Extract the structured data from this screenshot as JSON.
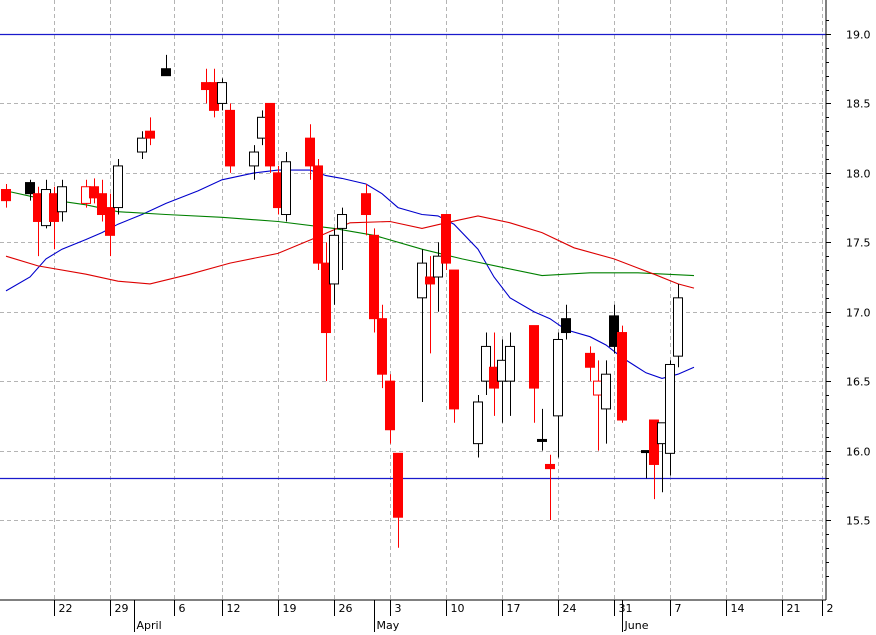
{
  "chart_data": {
    "type": "candlestick",
    "title": "",
    "ylim": [
      15.0,
      19.2
    ],
    "y_ticks": [
      15.5,
      16.0,
      16.5,
      17.0,
      17.5,
      18.0,
      18.5,
      19.0
    ],
    "y_tick_labels": [
      "15.5",
      "16.0",
      "16.5",
      "17.0",
      "17.5",
      "18.0",
      "18.5",
      "19.0"
    ],
    "x_start_date": "2012-03-16",
    "x_end_date": "2012-06-26",
    "x_tick_dates": [
      "2012-03-22",
      "2012-03-29",
      "2012-04-06",
      "2012-04-12",
      "2012-04-19",
      "2012-04-26",
      "2012-05-03",
      "2012-05-10",
      "2012-05-17",
      "2012-05-24",
      "2012-05-31",
      "2012-06-07",
      "2012-06-14",
      "2012-06-21",
      "2012-06-26"
    ],
    "x_tick_labels": [
      "22",
      "29",
      "6",
      "12",
      "19",
      "26",
      "3",
      "10",
      "17",
      "24",
      "31",
      "7",
      "14",
      "21",
      "2"
    ],
    "month_labels": [
      {
        "date": "2012-04-01",
        "label": "April"
      },
      {
        "date": "2012-05-01",
        "label": "May"
      },
      {
        "date": "2012-06-01",
        "label": "June"
      }
    ],
    "grid": true,
    "horizontal_lines": [
      {
        "value": 19.0,
        "color": "#1a1acc"
      },
      {
        "value": 15.8,
        "color": "#1a1acc"
      }
    ],
    "colors": {
      "up": "#ffffff",
      "down": "#ff0000",
      "outline": "#000000",
      "grid": "#b4b4b4"
    },
    "candles": [
      {
        "date": "2012-03-16",
        "open": 17.8,
        "high": 17.92,
        "low": 17.75,
        "close": 17.88,
        "color": "red"
      },
      {
        "date": "2012-03-19",
        "open": 17.85,
        "high": 17.95,
        "low": 17.8,
        "close": 17.93,
        "color": "black"
      },
      {
        "date": "2012-03-20",
        "open": 17.85,
        "high": 17.9,
        "low": 17.4,
        "close": 17.65,
        "color": "red"
      },
      {
        "date": "2012-03-21",
        "open": 17.62,
        "high": 17.95,
        "low": 17.6,
        "close": 17.88,
        "color": "white"
      },
      {
        "date": "2012-03-22",
        "open": 17.85,
        "high": 17.9,
        "low": 17.45,
        "close": 17.65,
        "color": "red"
      },
      {
        "date": "2012-03-23",
        "open": 17.72,
        "high": 17.95,
        "low": 17.65,
        "close": 17.9,
        "color": "white"
      },
      {
        "date": "2012-03-26",
        "open": 17.78,
        "high": 17.95,
        "low": 17.75,
        "close": 17.9,
        "color": "hollow-red"
      },
      {
        "date": "2012-03-27",
        "open": 17.9,
        "high": 17.96,
        "low": 17.78,
        "close": 17.82,
        "color": "red"
      },
      {
        "date": "2012-03-28",
        "open": 17.85,
        "high": 17.95,
        "low": 17.65,
        "close": 17.7,
        "color": "red"
      },
      {
        "date": "2012-03-29",
        "open": 17.75,
        "high": 17.85,
        "low": 17.4,
        "close": 17.55,
        "color": "red"
      },
      {
        "date": "2012-03-30",
        "open": 17.75,
        "high": 18.1,
        "low": 17.7,
        "close": 18.05,
        "color": "white"
      },
      {
        "date": "2012-04-02",
        "open": 18.15,
        "high": 18.3,
        "low": 18.1,
        "close": 18.25,
        "color": "white"
      },
      {
        "date": "2012-04-03",
        "open": 18.3,
        "high": 18.4,
        "low": 18.2,
        "close": 18.25,
        "color": "red"
      },
      {
        "date": "2012-04-05",
        "open": 18.7,
        "high": 18.85,
        "low": 18.7,
        "close": 18.75,
        "color": "black"
      },
      {
        "date": "2012-04-10",
        "open": 18.65,
        "high": 18.75,
        "low": 18.5,
        "close": 18.6,
        "color": "red"
      },
      {
        "date": "2012-04-11",
        "open": 18.65,
        "high": 18.75,
        "low": 18.4,
        "close": 18.45,
        "color": "red"
      },
      {
        "date": "2012-04-12",
        "open": 18.5,
        "high": 18.68,
        "low": 18.45,
        "close": 18.65,
        "color": "white"
      },
      {
        "date": "2012-04-13",
        "open": 18.45,
        "high": 18.5,
        "low": 18.0,
        "close": 18.05,
        "color": "red"
      },
      {
        "date": "2012-04-16",
        "open": 18.05,
        "high": 18.2,
        "low": 17.95,
        "close": 18.15,
        "color": "white"
      },
      {
        "date": "2012-04-17",
        "open": 18.25,
        "high": 18.45,
        "low": 18.2,
        "close": 18.4,
        "color": "white"
      },
      {
        "date": "2012-04-18",
        "open": 18.5,
        "high": 18.5,
        "low": 18.0,
        "close": 18.05,
        "color": "red"
      },
      {
        "date": "2012-04-19",
        "open": 18.0,
        "high": 18.05,
        "low": 17.7,
        "close": 17.75,
        "color": "red"
      },
      {
        "date": "2012-04-20",
        "open": 17.7,
        "high": 18.15,
        "low": 17.65,
        "close": 18.08,
        "color": "white"
      },
      {
        "date": "2012-04-23",
        "open": 18.25,
        "high": 18.35,
        "low": 17.95,
        "close": 18.05,
        "color": "red"
      },
      {
        "date": "2012-04-24",
        "open": 18.05,
        "high": 18.1,
        "low": 17.3,
        "close": 17.35,
        "color": "red"
      },
      {
        "date": "2012-04-25",
        "open": 17.35,
        "high": 17.5,
        "low": 16.5,
        "close": 16.85,
        "color": "red"
      },
      {
        "date": "2012-04-26",
        "open": 17.2,
        "high": 17.6,
        "low": 17.05,
        "close": 17.55,
        "color": "white"
      },
      {
        "date": "2012-04-27",
        "open": 17.6,
        "high": 17.75,
        "low": 17.3,
        "close": 17.7,
        "color": "white"
      },
      {
        "date": "2012-04-30",
        "open": 17.85,
        "high": 17.92,
        "low": 17.55,
        "close": 17.7,
        "color": "red"
      },
      {
        "date": "2012-05-01",
        "open": 17.55,
        "high": 17.6,
        "low": 16.85,
        "close": 16.95,
        "color": "red"
      },
      {
        "date": "2012-05-02",
        "open": 16.95,
        "high": 17.05,
        "low": 16.45,
        "close": 16.55,
        "color": "red"
      },
      {
        "date": "2012-05-03",
        "open": 16.5,
        "high": 16.55,
        "low": 16.05,
        "close": 16.15,
        "color": "red"
      },
      {
        "date": "2012-05-04",
        "open": 15.98,
        "high": 15.98,
        "low": 15.3,
        "close": 15.52,
        "color": "red"
      },
      {
        "date": "2012-05-07",
        "open": 17.1,
        "high": 17.45,
        "low": 16.35,
        "close": 17.35,
        "color": "white"
      },
      {
        "date": "2012-05-08",
        "open": 17.25,
        "high": 17.4,
        "low": 16.7,
        "close": 17.2,
        "color": "red"
      },
      {
        "date": "2012-05-09",
        "open": 17.25,
        "high": 17.5,
        "low": 17.0,
        "close": 17.4,
        "color": "white"
      },
      {
        "date": "2012-05-10",
        "open": 17.7,
        "high": 17.7,
        "low": 17.3,
        "close": 17.35,
        "color": "red"
      },
      {
        "date": "2012-05-11",
        "open": 17.3,
        "high": 17.3,
        "low": 16.2,
        "close": 16.3,
        "color": "red"
      },
      {
        "date": "2012-05-14",
        "open": 16.05,
        "high": 16.4,
        "low": 15.95,
        "close": 16.35,
        "color": "white"
      },
      {
        "date": "2012-05-15",
        "open": 16.5,
        "high": 16.85,
        "low": 16.4,
        "close": 16.75,
        "color": "white"
      },
      {
        "date": "2012-05-16",
        "open": 16.6,
        "high": 16.85,
        "low": 16.25,
        "close": 16.45,
        "color": "red"
      },
      {
        "date": "2012-05-17",
        "open": 16.5,
        "high": 16.8,
        "low": 16.2,
        "close": 16.65,
        "color": "white"
      },
      {
        "date": "2012-05-18",
        "open": 16.5,
        "high": 16.85,
        "low": 16.25,
        "close": 16.75,
        "color": "white"
      },
      {
        "date": "2012-05-21",
        "open": 16.9,
        "high": 16.9,
        "low": 16.2,
        "close": 16.45,
        "color": "red"
      },
      {
        "date": "2012-05-22",
        "open": 16.08,
        "high": 16.3,
        "low": 16.0,
        "close": 16.08,
        "color": "black"
      },
      {
        "date": "2012-05-23",
        "open": 15.9,
        "high": 15.97,
        "low": 15.5,
        "close": 15.87,
        "color": "red"
      },
      {
        "date": "2012-05-24",
        "open": 16.25,
        "high": 16.85,
        "low": 15.95,
        "close": 16.8,
        "color": "white"
      },
      {
        "date": "2012-05-25",
        "open": 16.85,
        "high": 17.05,
        "low": 16.8,
        "close": 16.95,
        "color": "black"
      },
      {
        "date": "2012-05-28",
        "open": 16.7,
        "high": 16.75,
        "low": 16.5,
        "close": 16.6,
        "color": "red"
      },
      {
        "date": "2012-05-29",
        "open": 16.5,
        "high": 16.65,
        "low": 16.0,
        "close": 16.4,
        "color": "hollow-red"
      },
      {
        "date": "2012-05-30",
        "open": 16.3,
        "high": 16.65,
        "low": 16.05,
        "close": 16.55,
        "color": "white"
      },
      {
        "date": "2012-05-31",
        "open": 16.75,
        "high": 17.05,
        "low": 16.7,
        "close": 16.97,
        "color": "black"
      },
      {
        "date": "2012-06-01",
        "open": 16.85,
        "high": 16.9,
        "low": 16.2,
        "close": 16.22,
        "color": "red"
      },
      {
        "date": "2012-06-04",
        "open": 16.0,
        "high": 16.0,
        "low": 15.8,
        "close": 15.99,
        "color": "black"
      },
      {
        "date": "2012-06-05",
        "open": 16.22,
        "high": 16.22,
        "low": 15.65,
        "close": 15.9,
        "color": "red"
      },
      {
        "date": "2012-06-06",
        "open": 16.05,
        "high": 16.2,
        "low": 15.7,
        "close": 16.2,
        "color": "white"
      },
      {
        "date": "2012-06-07",
        "open": 15.98,
        "high": 16.65,
        "low": 15.82,
        "close": 16.62,
        "color": "white"
      },
      {
        "date": "2012-06-08",
        "open": 16.68,
        "high": 17.2,
        "low": 16.6,
        "close": 17.1,
        "color": "white"
      }
    ],
    "series": [
      {
        "color": "#0000cc",
        "points": [
          [
            "2012-03-16",
            17.15
          ],
          [
            "2012-03-19",
            17.25
          ],
          [
            "2012-03-21",
            17.38
          ],
          [
            "2012-03-23",
            17.45
          ],
          [
            "2012-03-26",
            17.52
          ],
          [
            "2012-03-28",
            17.57
          ],
          [
            "2012-03-30",
            17.63
          ],
          [
            "2012-04-02",
            17.7
          ],
          [
            "2012-04-05",
            17.78
          ],
          [
            "2012-04-09",
            17.87
          ],
          [
            "2012-04-12",
            17.95
          ],
          [
            "2012-04-16",
            18.0
          ],
          [
            "2012-04-19",
            18.02
          ],
          [
            "2012-04-23",
            18.02
          ],
          [
            "2012-04-25",
            17.98
          ],
          [
            "2012-04-27",
            17.96
          ],
          [
            "2012-04-30",
            17.92
          ],
          [
            "2012-05-02",
            17.85
          ],
          [
            "2012-05-04",
            17.75
          ],
          [
            "2012-05-07",
            17.7
          ],
          [
            "2012-05-09",
            17.69
          ],
          [
            "2012-05-11",
            17.63
          ],
          [
            "2012-05-14",
            17.45
          ],
          [
            "2012-05-16",
            17.25
          ],
          [
            "2012-05-18",
            17.1
          ],
          [
            "2012-05-21",
            17.0
          ],
          [
            "2012-05-23",
            16.95
          ],
          [
            "2012-05-25",
            16.87
          ],
          [
            "2012-05-28",
            16.82
          ],
          [
            "2012-05-30",
            16.76
          ],
          [
            "2012-06-01",
            16.67
          ],
          [
            "2012-06-04",
            16.56
          ],
          [
            "2012-06-06",
            16.52
          ],
          [
            "2012-06-08",
            16.55
          ],
          [
            "2012-06-10",
            16.6
          ]
        ]
      },
      {
        "color": "#008000",
        "points": [
          [
            "2012-03-16",
            17.87
          ],
          [
            "2012-03-20",
            17.82
          ],
          [
            "2012-03-26",
            17.77
          ],
          [
            "2012-03-30",
            17.72
          ],
          [
            "2012-04-05",
            17.7
          ],
          [
            "2012-04-12",
            17.68
          ],
          [
            "2012-04-19",
            17.65
          ],
          [
            "2012-04-26",
            17.6
          ],
          [
            "2012-05-01",
            17.55
          ],
          [
            "2012-05-07",
            17.45
          ],
          [
            "2012-05-12",
            17.38
          ],
          [
            "2012-05-17",
            17.32
          ],
          [
            "2012-05-22",
            17.26
          ],
          [
            "2012-05-28",
            17.28
          ],
          [
            "2012-06-03",
            17.28
          ],
          [
            "2012-06-10",
            17.26
          ]
        ]
      },
      {
        "color": "#dd0000",
        "points": [
          [
            "2012-03-16",
            17.4
          ],
          [
            "2012-03-20",
            17.33
          ],
          [
            "2012-03-26",
            17.27
          ],
          [
            "2012-03-30",
            17.22
          ],
          [
            "2012-04-03",
            17.2
          ],
          [
            "2012-04-08",
            17.27
          ],
          [
            "2012-04-13",
            17.35
          ],
          [
            "2012-04-19",
            17.42
          ],
          [
            "2012-04-24",
            17.54
          ],
          [
            "2012-04-28",
            17.64
          ],
          [
            "2012-05-03",
            17.65
          ],
          [
            "2012-05-07",
            17.6
          ],
          [
            "2012-05-10",
            17.64
          ],
          [
            "2012-05-14",
            17.69
          ],
          [
            "2012-05-18",
            17.64
          ],
          [
            "2012-05-22",
            17.57
          ],
          [
            "2012-05-26",
            17.46
          ],
          [
            "2012-05-31",
            17.38
          ],
          [
            "2012-06-05",
            17.27
          ],
          [
            "2012-06-08",
            17.2
          ],
          [
            "2012-06-10",
            17.17
          ]
        ]
      }
    ]
  }
}
